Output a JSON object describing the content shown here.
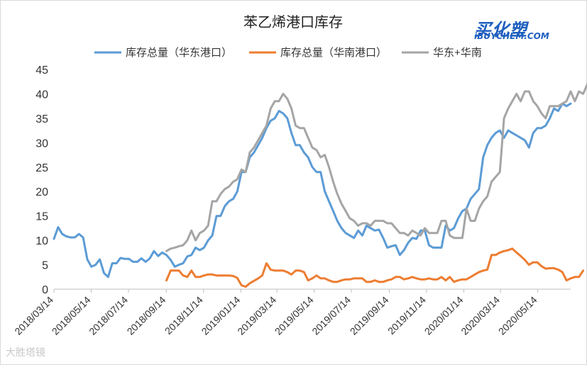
{
  "logo": {
    "main": "买化塑",
    "sub": "iBUYCHEM.COM"
  },
  "watermark": "大胜塔镜",
  "chart_data": {
    "type": "line",
    "title": "苯乙烯港口库存",
    "xlabel": "",
    "ylabel": "",
    "ylim": [
      0,
      45
    ],
    "yticks": [
      0,
      5,
      10,
      15,
      20,
      25,
      30,
      35,
      40,
      45
    ],
    "grid": false,
    "legend_position": "top",
    "x_ticks": [
      "2018/03/14",
      "2018/05/14",
      "2018/07/14",
      "2018/09/14",
      "2018/11/14",
      "2019/01/14",
      "2019/03/14",
      "2019/05/14",
      "2019/07/14",
      "2019/09/14",
      "2019/11/14",
      "2020/01/14",
      "2020/03/14",
      "2020/05/14"
    ],
    "x_start": "2018/03/14",
    "x_end": "2020/07/07",
    "series": [
      {
        "name": "库存总量（华东港口）",
        "color": "#5b9bd5",
        "start_index": 0,
        "values": [
          10.3,
          12.7,
          11.3,
          10.8,
          10.6,
          10.6,
          11.3,
          10.6,
          6.1,
          4.6,
          5.0,
          6.1,
          3.3,
          2.5,
          5.3,
          5.3,
          6.4,
          6.2,
          6.2,
          5.6,
          5.6,
          6.3,
          5.6,
          6.3,
          7.8,
          6.8,
          7.5,
          7.0,
          6.0,
          4.6,
          5.0,
          5.3,
          6.7,
          7.0,
          8.5,
          8.0,
          8.5,
          10.0,
          11.0,
          15.0,
          15.0,
          17.0,
          18.0,
          18.5,
          20.0,
          24.0,
          24.0,
          27.0,
          28.0,
          29.5,
          31.0,
          33.0,
          34.5,
          35.0,
          36.5,
          36.0,
          35.0,
          32.0,
          29.5,
          29.5,
          28.0,
          27.0,
          25.0,
          24.0,
          24.0,
          20.0,
          18.0,
          16.0,
          14.0,
          12.5,
          11.5,
          11.0,
          10.5,
          12.0,
          11.0,
          13.0,
          12.5,
          12.0,
          12.2,
          10.5,
          8.5,
          8.8,
          9.0,
          7.0,
          8.0,
          9.5,
          10.5,
          10.3,
          12.0,
          12.0,
          9.0,
          8.5,
          8.5,
          8.5,
          13.0,
          12.0,
          12.5,
          14.5,
          16.0,
          16.5,
          18.5,
          19.5,
          20.5,
          27.0,
          29.5,
          31.0,
          32.0,
          32.5,
          31.0,
          32.5,
          32.0,
          31.5,
          31.0,
          30.5,
          29.0,
          32.0,
          33.0,
          33.0,
          33.5,
          35.0,
          37.0,
          36.5,
          38.0,
          37.5,
          38.0
        ]
      },
      {
        "name": "库存总量（华南港口）",
        "color": "#ed7d31",
        "start_index": 27,
        "values": [
          1.8,
          3.8,
          3.8,
          3.8,
          2.8,
          2.5,
          3.8,
          2.5,
          2.5,
          2.8,
          3.0,
          3.0,
          2.8,
          2.8,
          2.8,
          2.8,
          2.7,
          2.3,
          0.8,
          0.5,
          1.2,
          1.7,
          2.2,
          2.8,
          5.3,
          4.0,
          3.8,
          3.8,
          3.8,
          3.5,
          3.0,
          3.8,
          3.8,
          3.5,
          1.8,
          2.2,
          2.8,
          2.2,
          2.2,
          1.8,
          1.5,
          1.5,
          1.8,
          2.0,
          2.0,
          2.2,
          2.2,
          2.2,
          1.5,
          1.5,
          1.8,
          1.5,
          1.5,
          1.8,
          2.0,
          2.5,
          2.5,
          2.0,
          2.2,
          2.5,
          2.2,
          2.0,
          2.0,
          2.2,
          2.0,
          2.0,
          2.5,
          1.8,
          2.5,
          1.5,
          1.8,
          2.0,
          2.0,
          2.5,
          3.0,
          3.5,
          3.8,
          4.0,
          7.0,
          7.0,
          7.5,
          7.8,
          8.0,
          8.3,
          7.5,
          6.8,
          6.0,
          5.0,
          5.5,
          5.5,
          4.7,
          4.2,
          4.3,
          4.3,
          4.0,
          3.5,
          1.8,
          2.2,
          2.5,
          2.5,
          3.8
        ]
      },
      {
        "name": "华东+华南",
        "color": "#a5a5a5",
        "start_index": 27,
        "values": [
          7.8,
          8.3,
          8.5,
          8.8,
          9.0,
          10.0,
          12.0,
          10.0,
          11.5,
          12.0,
          13.0,
          18.0,
          18.0,
          19.5,
          20.5,
          21.0,
          22.0,
          22.5,
          24.5,
          24.0,
          28.0,
          29.0,
          30.5,
          32.0,
          33.5,
          37.0,
          38.5,
          38.5,
          40.0,
          39.0,
          37.0,
          33.5,
          33.0,
          33.0,
          31.0,
          29.0,
          28.5,
          27.0,
          27.5,
          25.0,
          22.0,
          19.5,
          17.5,
          16.0,
          14.5,
          14.0,
          13.0,
          13.5,
          13.5,
          13.0,
          14.0,
          14.0,
          14.0,
          13.5,
          13.5,
          12.5,
          11.5,
          11.5,
          11.0,
          12.0,
          11.5,
          11.0,
          12.5,
          11.5,
          11.5,
          11.5,
          14.0,
          14.0,
          11.0,
          10.5,
          10.5,
          10.5,
          16.5,
          14.0,
          14.0,
          16.5,
          18.0,
          19.0,
          22.0,
          23.0,
          24.0,
          35.0,
          37.0,
          38.5,
          40.0,
          38.5,
          40.5,
          40.5,
          38.5,
          37.5,
          36.0,
          35.0,
          37.5,
          37.5,
          37.5,
          38.0,
          38.5,
          40.5,
          38.5,
          40.5,
          40.0,
          42.0
        ]
      }
    ]
  }
}
